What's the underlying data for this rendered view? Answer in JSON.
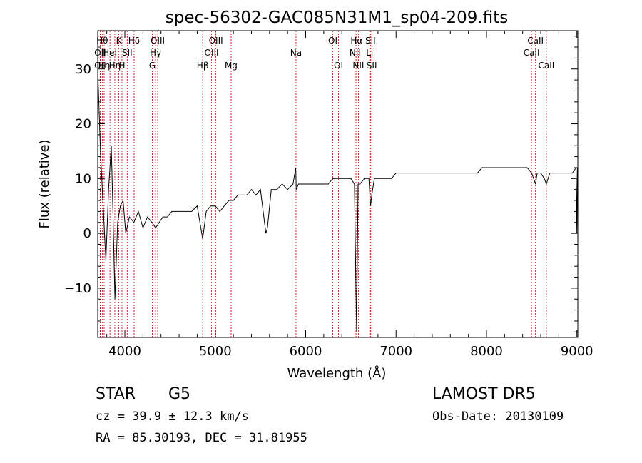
{
  "chart_data": {
    "type": "line",
    "title": "spec-56302-GAC085N31M1_sp04-209.fits",
    "xlabel": "Wavelength (Å)",
    "ylabel": "Flux (relative)",
    "xlim": [
      3700,
      9010
    ],
    "ylim": [
      -19,
      37
    ],
    "xticks": [
      4000,
      5000,
      6000,
      7000,
      8000,
      9000
    ],
    "yticks": [
      -10,
      0,
      10,
      20,
      30
    ],
    "grid": false,
    "line_color": "#000000",
    "marker_color": "#cc0000",
    "series": [
      {
        "values_x": [
          3700,
          3730,
          3760,
          3790,
          3820,
          3850,
          3870,
          3890,
          3920,
          3950,
          3980,
          4010,
          4050,
          4100,
          4150,
          4200,
          4250,
          4300,
          4340,
          4380,
          4420,
          4470,
          4520,
          4570,
          4620,
          4680,
          4740,
          4800,
          4861,
          4900,
          4950,
          5000,
          5050,
          5100,
          5150,
          5200,
          5250,
          5300,
          5350,
          5400,
          5450,
          5500,
          5560,
          5577,
          5620,
          5680,
          5740,
          5800,
          5860,
          5890,
          5896,
          5920,
          5960,
          6000,
          6050,
          6100,
          6150,
          6200,
          6250,
          6300,
          6330,
          6350,
          6400,
          6450,
          6500,
          6540,
          6563,
          6580,
          6600,
          6650,
          6700,
          6717,
          6731,
          6760,
          6800,
          6850,
          6900,
          6950,
          7000,
          7050,
          7100,
          7150,
          7200,
          7250,
          7300,
          7350,
          7400,
          7450,
          7500,
          7550,
          7600,
          7650,
          7700,
          7750,
          7800,
          7850,
          7900,
          7950,
          8000,
          8050,
          8100,
          8150,
          8200,
          8250,
          8300,
          8350,
          8400,
          8450,
          8500,
          8542,
          8560,
          8600,
          8640,
          8662,
          8700,
          8750,
          8800,
          8850,
          8900,
          8950,
          8990,
          9000,
          9005
        ],
        "values_y": [
          30,
          15,
          5,
          -5,
          8,
          16,
          3,
          -12,
          2,
          5,
          6,
          0,
          3,
          2,
          4,
          1,
          3,
          2,
          1,
          2,
          3,
          3,
          4,
          4,
          4,
          4,
          4,
          5,
          -1,
          4,
          5,
          5,
          4,
          5,
          6,
          6,
          7,
          7,
          7,
          8,
          7,
          8,
          0,
          1,
          8,
          8,
          9,
          8,
          9,
          12,
          8,
          9,
          9,
          9,
          9,
          9,
          9,
          9,
          9,
          10,
          10,
          10,
          10,
          10,
          10,
          9,
          -18,
          9,
          9,
          10,
          10,
          5,
          7,
          10,
          10,
          10,
          10,
          10,
          11,
          11,
          11,
          11,
          11,
          11,
          11,
          11,
          11,
          11,
          11,
          11,
          11,
          11,
          11,
          11,
          11,
          11,
          11,
          12,
          12,
          12,
          12,
          12,
          12,
          12,
          12,
          12,
          12,
          12,
          11,
          9,
          11,
          11,
          10,
          9,
          11,
          11,
          11,
          11,
          11,
          11,
          12,
          0,
          12
        ]
      }
    ],
    "line_markers": [
      {
        "w": 3727,
        "label": "OII",
        "row": 1
      },
      {
        "w": 3727,
        "label": "OII",
        "row": 2
      },
      {
        "w": 3750,
        "label": "Hθ",
        "row": 0
      },
      {
        "w": 3771,
        "label": "Hη",
        "row": 2
      },
      {
        "w": 3835,
        "label": "HeI",
        "row": 1
      },
      {
        "w": 3889,
        "label": "Hη",
        "row": 2
      },
      {
        "w": 3933,
        "label": "K",
        "row": 0
      },
      {
        "w": 3968,
        "label": "H",
        "row": 2
      },
      {
        "w": 4026,
        "label": "SII",
        "row": 1
      },
      {
        "w": 4102,
        "label": "Hδ",
        "row": 0
      },
      {
        "w": 4304,
        "label": "G",
        "row": 2
      },
      {
        "w": 4340,
        "label": "Hγ",
        "row": 1
      },
      {
        "w": 4363,
        "label": "OIII",
        "row": 0
      },
      {
        "w": 4861,
        "label": "Hβ",
        "row": 2
      },
      {
        "w": 4959,
        "label": "OIII",
        "row": 1
      },
      {
        "w": 5007,
        "label": "OIII",
        "row": 0
      },
      {
        "w": 5175,
        "label": "Mg",
        "row": 2
      },
      {
        "w": 5893,
        "label": "Na",
        "row": 1
      },
      {
        "w": 6300,
        "label": "OI",
        "row": 0
      },
      {
        "w": 6363,
        "label": "OI",
        "row": 2
      },
      {
        "w": 6548,
        "label": "NII",
        "row": 1
      },
      {
        "w": 6563,
        "label": "Hα",
        "row": 0
      },
      {
        "w": 6583,
        "label": "NII",
        "row": 2
      },
      {
        "w": 6708,
        "label": "Li",
        "row": 1
      },
      {
        "w": 6717,
        "label": "SII",
        "row": 0
      },
      {
        "w": 6731,
        "label": "SII",
        "row": 2
      },
      {
        "w": 8498,
        "label": "CaII",
        "row": 1
      },
      {
        "w": 8542,
        "label": "CaII",
        "row": 0
      },
      {
        "w": 8662,
        "label": "CaII",
        "row": 2
      }
    ]
  },
  "info": {
    "class_label": "STAR",
    "subclass": "G5",
    "cz": "cz = 39.9 ± 12.3 km/s",
    "coords": "RA =  85.30193, DEC =  31.81955",
    "survey": "LAMOST  DR5",
    "obs_date": "Obs-Date: 20130109"
  }
}
